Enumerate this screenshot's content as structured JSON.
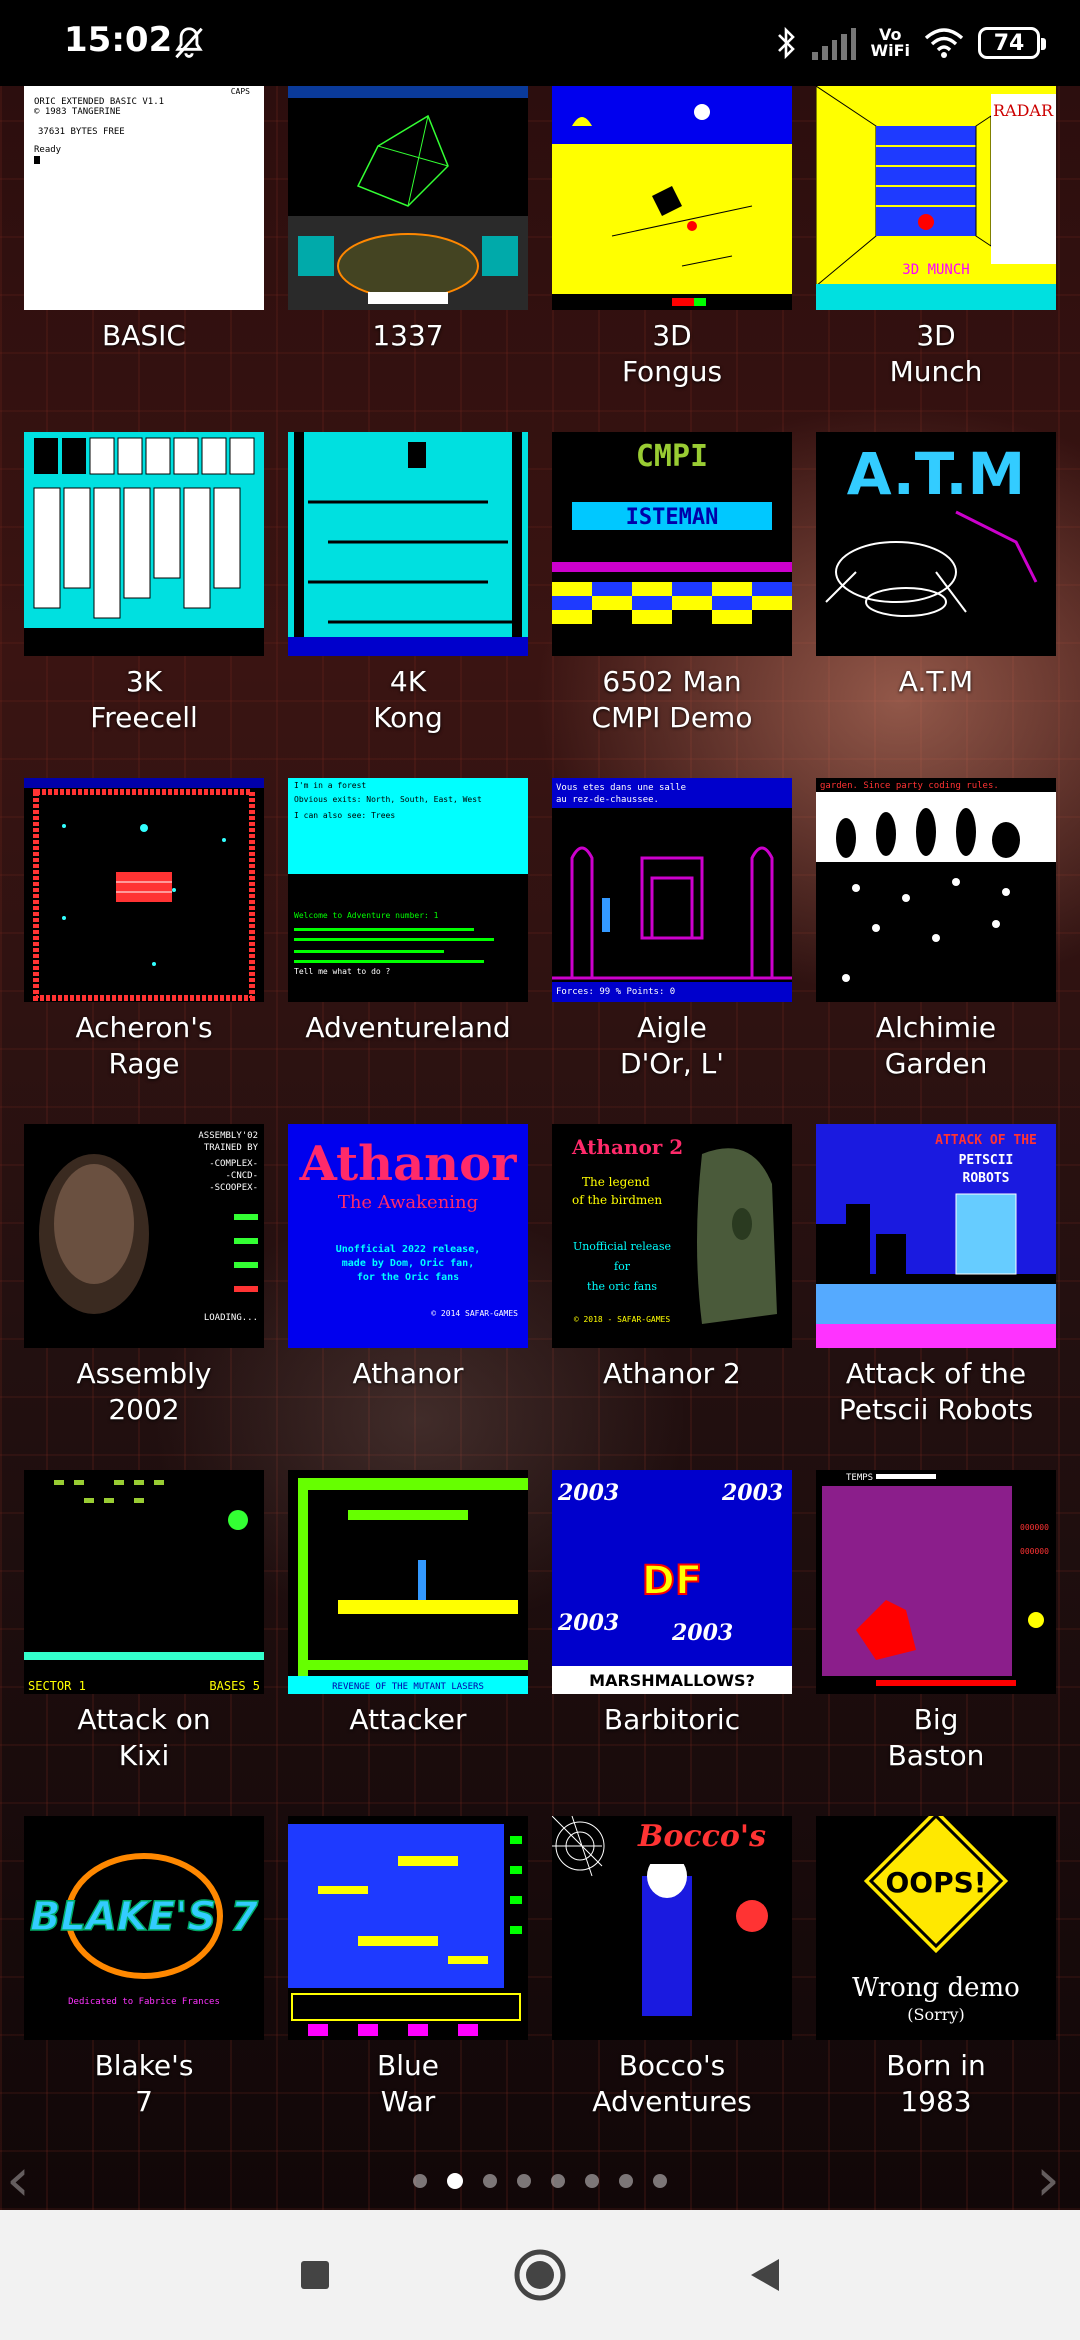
{
  "status_bar": {
    "time": "15:02",
    "wifi_label": "Vo\nWiFi",
    "battery": "74"
  },
  "apps": [
    {
      "label": "BASIC"
    },
    {
      "label": "1337"
    },
    {
      "label": "3D\nFongus"
    },
    {
      "label": "3D\nMunch"
    },
    {
      "label": "3K\nFreecell"
    },
    {
      "label": "4K\nKong"
    },
    {
      "label": "6502 Man\nCMPI Demo"
    },
    {
      "label": "A.T.M"
    },
    {
      "label": "Acheron's\nRage"
    },
    {
      "label": "Adventureland"
    },
    {
      "label": "Aigle\nD'Or, L'"
    },
    {
      "label": "Alchimie\nGarden"
    },
    {
      "label": "Assembly\n2002"
    },
    {
      "label": "Athanor"
    },
    {
      "label": "Athanor 2"
    },
    {
      "label": "Attack of the\nPetscii Robots"
    },
    {
      "label": "Attack on\nKixi"
    },
    {
      "label": "Attacker"
    },
    {
      "label": "Barbitoric"
    },
    {
      "label": "Big\nBaston"
    },
    {
      "label": "Blake's\n7"
    },
    {
      "label": "Blue\nWar"
    },
    {
      "label": "Bocco's\nAdventures"
    },
    {
      "label": "Born in\n1983"
    }
  ],
  "thumb_text": {
    "basic": [
      "ORIC EXTENDED BASIC V1.1",
      "© 1983 TANGERINE",
      "37631 BYTES FREE",
      "Ready"
    ],
    "basic_caps": "CAPS",
    "munch_radar": "RADAR",
    "munch_title": "3D MUNCH",
    "cmpi": "CMPI",
    "isteman": "ISTEMAN",
    "atm": "A.T.M",
    "adventure": [
      "I'm in a forest",
      "Obvious exits: North, South, East, West",
      "I can also see: Trees",
      "Welcome to Adventure number: 1",
      "Tell me what to do ?"
    ],
    "aigle": [
      "Vous etes dans une salle",
      "au rez-de-chaussee.",
      "Forces: 99 %   Points: 0"
    ],
    "alchimie": "garden. Since party coding rules.",
    "assembly": [
      "ASSEMBLY'02",
      "TRAINED BY",
      "-COMPLEX-",
      "-CNCD-",
      "-SCOOPEX-",
      "LOADING..."
    ],
    "athanor": [
      "Athanor",
      "The Awakening",
      "Unofficial 2022 release,",
      "made by Dom, Oric fan,",
      "for the Oric fans",
      "© 2014 SAFAR-GAMES"
    ],
    "athanor2": [
      "Athanor 2",
      "The legend",
      "of the birdmen",
      "Unofficial release",
      "for",
      "the oric fans",
      "© 2018 - SAFAR-GAMES"
    ],
    "petscii": [
      "ATTACK OF THE",
      "PETSCII",
      "ROBOTS"
    ],
    "kixi": [
      "SECTOR 1",
      "BASES 5"
    ],
    "attacker": "REVENGE OF THE MUTANT LASERS",
    "barbitoric": [
      "2003",
      "DF",
      "MARSHMALLOWS?"
    ],
    "baston": "TEMPS",
    "blakes": [
      "BLAKE'S 7",
      "Dedicated to Fabrice Frances"
    ],
    "bocco": "Bocco's",
    "oops": [
      "OOPS!",
      "Wrong demo",
      "(Sorry)"
    ]
  },
  "pager": {
    "pages": 8,
    "active": 1
  }
}
